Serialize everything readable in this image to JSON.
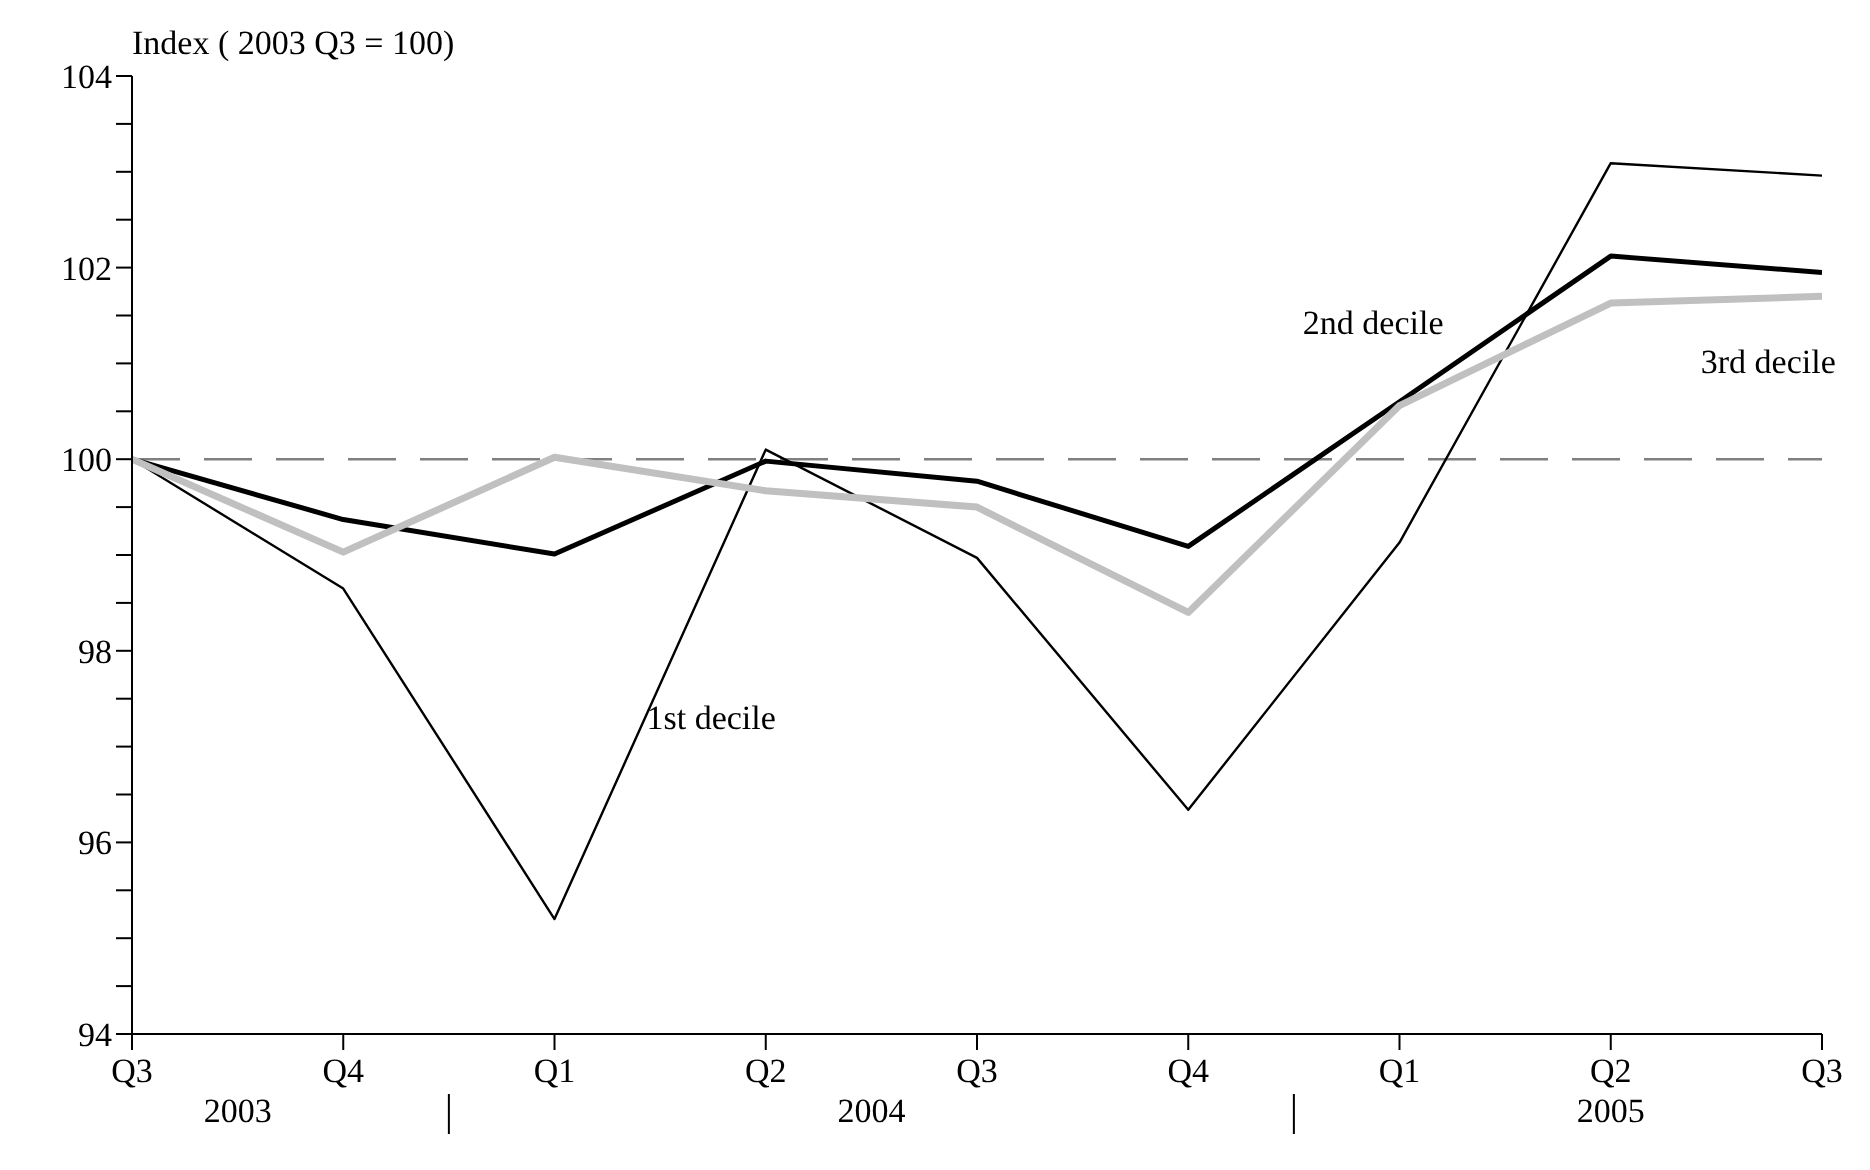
{
  "chart_data": {
    "type": "line",
    "ylabel": "Index ( 2003 Q3 = 100)",
    "categories": [
      "Q3",
      "Q4",
      "Q1",
      "Q2",
      "Q3",
      "Q4",
      "Q1",
      "Q2",
      "Q3"
    ],
    "series": [
      {
        "name": "1st decile",
        "color": "#000000",
        "values": [
          100,
          98.65,
          95.2,
          100.1,
          98.97,
          96.34,
          99.13,
          103.09,
          102.96
        ]
      },
      {
        "name": "2nd decile",
        "color": "#000000",
        "values": [
          100,
          99.37,
          99.01,
          99.98,
          99.77,
          99.09,
          100.6,
          102.12,
          101.95
        ]
      },
      {
        "name": "3rd decile",
        "color": "#c0c0c0",
        "values": [
          100,
          99.03,
          100.02,
          99.67,
          99.5,
          98.4,
          100.56,
          101.63,
          101.7
        ]
      }
    ],
    "ylim": [
      94,
      104
    ],
    "yticks": [
      94,
      {
        "value": 94.5,
        "label": null
      },
      {
        "value": 95,
        "label": null
      },
      {
        "value": 95.5,
        "label": null
      },
      96,
      {
        "value": 96.5,
        "label": null
      },
      {
        "value": 97,
        "label": null
      },
      {
        "value": 97.5,
        "label": null
      },
      98,
      {
        "value": 98.5,
        "label": null
      },
      {
        "value": 99,
        "label": null
      },
      {
        "value": 99.5,
        "label": null
      },
      100,
      {
        "value": 100.5,
        "label": null
      },
      {
        "value": 101,
        "label": null
      },
      {
        "value": 101.5,
        "label": null
      },
      102,
      {
        "value": 102.5,
        "label": null
      },
      {
        "value": 103,
        "label": null
      },
      {
        "value": 103.5,
        "label": null
      },
      104
    ],
    "ref_lines": [
      {
        "axis": "y",
        "value": 100,
        "color": "#808080",
        "line_style": "dashed"
      }
    ],
    "annotations": [
      "2003",
      "2004",
      "2005"
    ],
    "marker": "none",
    "line_style": "solid"
  }
}
